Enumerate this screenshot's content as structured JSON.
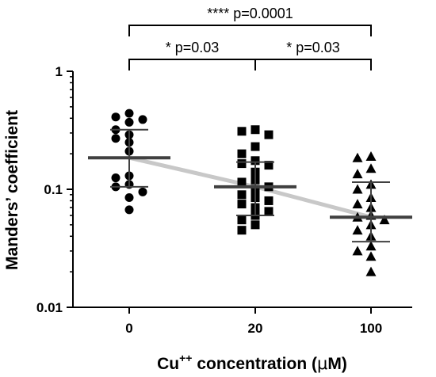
{
  "chart_data": {
    "type": "scatter",
    "ylabel": "Manders’ coefficient",
    "xlabel_parts": [
      "Cu",
      "++",
      " concentration (",
      "μ",
      "M)"
    ],
    "yscale": "log",
    "ylim": [
      0.01,
      1
    ],
    "yticks": [
      {
        "value": 1,
        "label": "1"
      },
      {
        "value": 0.1,
        "label": "0.1"
      },
      {
        "value": 0.01,
        "label": "0.01"
      }
    ],
    "categories": [
      "0",
      "20",
      "100"
    ],
    "colors": {
      "points": "#000000",
      "summary": "#404040",
      "trend": "#c8c8c8"
    },
    "groups": [
      {
        "label": "0",
        "marker": "circle",
        "mean": 0.185,
        "sd_upper": 0.32,
        "sd_lower": 0.105,
        "values": [
          0.44,
          0.41,
          0.39,
          0.37,
          0.32,
          0.29,
          0.27,
          0.25,
          0.21,
          0.13,
          0.125,
          0.11,
          0.105,
          0.095,
          0.085,
          0.067
        ]
      },
      {
        "label": "20",
        "marker": "square",
        "mean": 0.105,
        "sd_upper": 0.17,
        "sd_lower": 0.06,
        "values": [
          0.32,
          0.31,
          0.29,
          0.23,
          0.2,
          0.175,
          0.165,
          0.16,
          0.14,
          0.12,
          0.115,
          0.105,
          0.1,
          0.09,
          0.085,
          0.08,
          0.075,
          0.07,
          0.065,
          0.06,
          0.055,
          0.05,
          0.045
        ]
      },
      {
        "label": "100",
        "marker": "triangle",
        "mean": 0.058,
        "sd_upper": 0.115,
        "sd_lower": 0.036,
        "values": [
          0.19,
          0.185,
          0.15,
          0.135,
          0.11,
          0.1,
          0.085,
          0.075,
          0.07,
          0.06,
          0.058,
          0.055,
          0.05,
          0.045,
          0.04,
          0.033,
          0.03,
          0.027,
          0.02
        ]
      }
    ],
    "annotations": [
      {
        "from": "0",
        "to": "100",
        "text": "**** p=0.0001"
      },
      {
        "from": "0",
        "to": "20",
        "text": "* p=0.03"
      },
      {
        "from": "20",
        "to": "100",
        "text": "* p=0.03"
      }
    ]
  }
}
